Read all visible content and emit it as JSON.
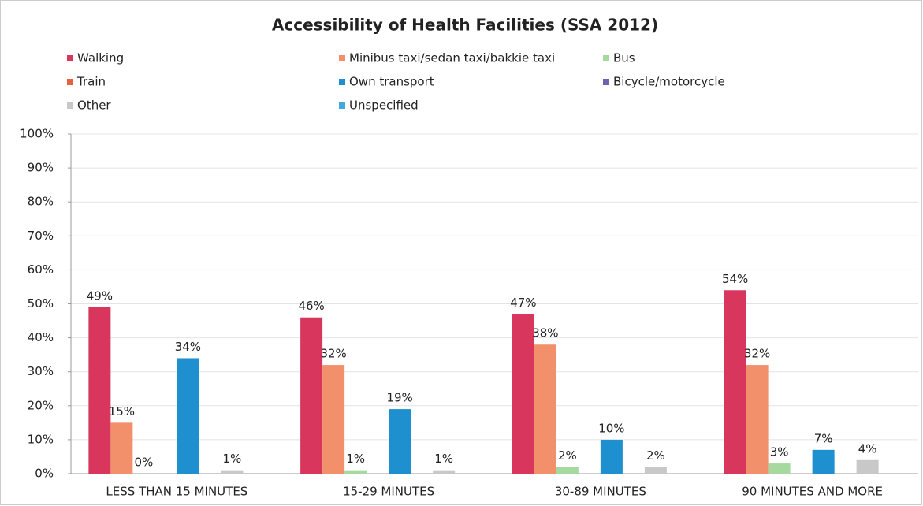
{
  "chart_data": {
    "type": "bar",
    "title": "Accessibility of Health Facilities (SSA 2012)",
    "categories": [
      "LESS THAN 15 MINUTES",
      "15-29 MINUTES",
      "30-89 MINUTES",
      "90 MINUTES AND MORE"
    ],
    "series": [
      {
        "name": "Walking",
        "color": "#d8365c",
        "values": [
          49,
          46,
          47,
          54
        ],
        "value_labels": [
          "49%",
          "46%",
          "47%",
          "54%"
        ]
      },
      {
        "name": "Minibus taxi/sedan taxi/bakkie taxi",
        "color": "#f2906c",
        "values": [
          15,
          32,
          38,
          32
        ],
        "value_labels": [
          "15%",
          "32%",
          "38%",
          "32%"
        ]
      },
      {
        "name": "Bus",
        "color": "#a6d9a0",
        "values": [
          0,
          1,
          2,
          3
        ],
        "value_labels": [
          "0%",
          "1%",
          "2%",
          "3%"
        ]
      },
      {
        "name": "Train",
        "color": "#e8603c",
        "values": [
          0,
          0,
          0,
          0
        ]
      },
      {
        "name": "Own transport",
        "color": "#1e8fcf",
        "values": [
          34,
          19,
          10,
          7
        ],
        "value_labels": [
          "34%",
          "19%",
          "10%",
          "7%"
        ]
      },
      {
        "name": "Bicycle/motorcycle",
        "color": "#7060b0",
        "values": [
          0,
          0,
          0,
          0
        ]
      },
      {
        "name": "Other",
        "color": "#c8c8c8",
        "values": [
          1,
          1,
          2,
          4
        ],
        "value_labels": [
          "1%",
          "1%",
          "2%",
          "4%"
        ]
      },
      {
        "name": "Unspecified",
        "color": "#42a9e0",
        "values": [
          0,
          0,
          0,
          0
        ]
      }
    ],
    "ylim": [
      0,
      100
    ],
    "yticks": [
      {
        "value": 0,
        "label": "0%"
      },
      {
        "value": 10,
        "label": "10%"
      },
      {
        "value": 20,
        "label": "20%"
      },
      {
        "value": 30,
        "label": "30%"
      },
      {
        "value": 40,
        "label": "40%"
      },
      {
        "value": 50,
        "label": "50%"
      },
      {
        "value": 60,
        "label": "60%"
      },
      {
        "value": 70,
        "label": "70%"
      },
      {
        "value": 80,
        "label": "80%"
      },
      {
        "value": 90,
        "label": "90%"
      },
      {
        "value": 100,
        "label": "100%"
      }
    ],
    "grid": true,
    "legend": "top"
  }
}
